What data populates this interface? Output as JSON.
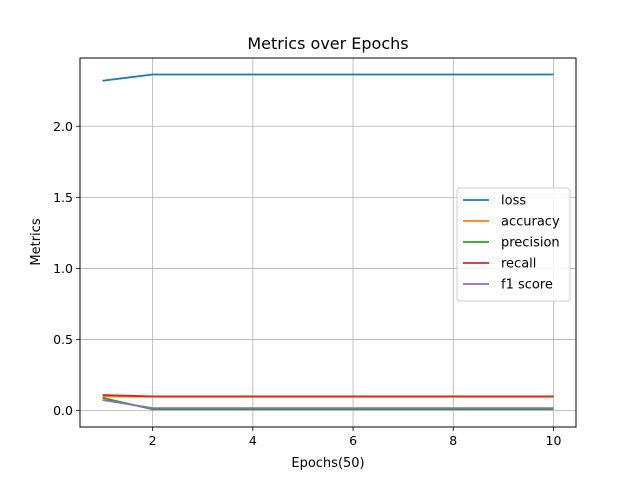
{
  "chart_data": {
    "type": "line",
    "title": "Metrics over Epochs",
    "xlabel": "Epochs(50)",
    "ylabel": "Metrics",
    "xlim": [
      0.55,
      10.45
    ],
    "ylim": [
      -0.115,
      2.48
    ],
    "xticks": [
      2,
      4,
      6,
      8,
      10
    ],
    "yticks": [
      0.0,
      0.5,
      1.0,
      1.5,
      2.0
    ],
    "ytick_labels": [
      "0.0",
      "0.5",
      "1.0",
      "1.5",
      "2.0"
    ],
    "grid": true,
    "legend": "center-right",
    "x": [
      1,
      2,
      3,
      4,
      5,
      6,
      7,
      8,
      9,
      10
    ],
    "series": [
      {
        "name": "loss",
        "color": "#1f77b4",
        "values": [
          2.32,
          2.364,
          2.364,
          2.364,
          2.364,
          2.364,
          2.364,
          2.364,
          2.364,
          2.364
        ]
      },
      {
        "name": "accuracy",
        "color": "#ff7f0e",
        "values": [
          0.1,
          0.098,
          0.098,
          0.098,
          0.098,
          0.098,
          0.098,
          0.098,
          0.098,
          0.098
        ]
      },
      {
        "name": "precision",
        "color": "#2ca02c",
        "values": [
          0.09,
          0.01,
          0.01,
          0.01,
          0.01,
          0.01,
          0.01,
          0.01,
          0.01,
          0.01
        ]
      },
      {
        "name": "recall",
        "color": "#d62728",
        "values": [
          0.11,
          0.1,
          0.1,
          0.1,
          0.1,
          0.1,
          0.1,
          0.1,
          0.1,
          0.1
        ]
      },
      {
        "name": "f1 score",
        "color": "#9467bd",
        "values": [
          0.075,
          0.018,
          0.018,
          0.018,
          0.018,
          0.018,
          0.018,
          0.018,
          0.018,
          0.018
        ]
      }
    ]
  }
}
